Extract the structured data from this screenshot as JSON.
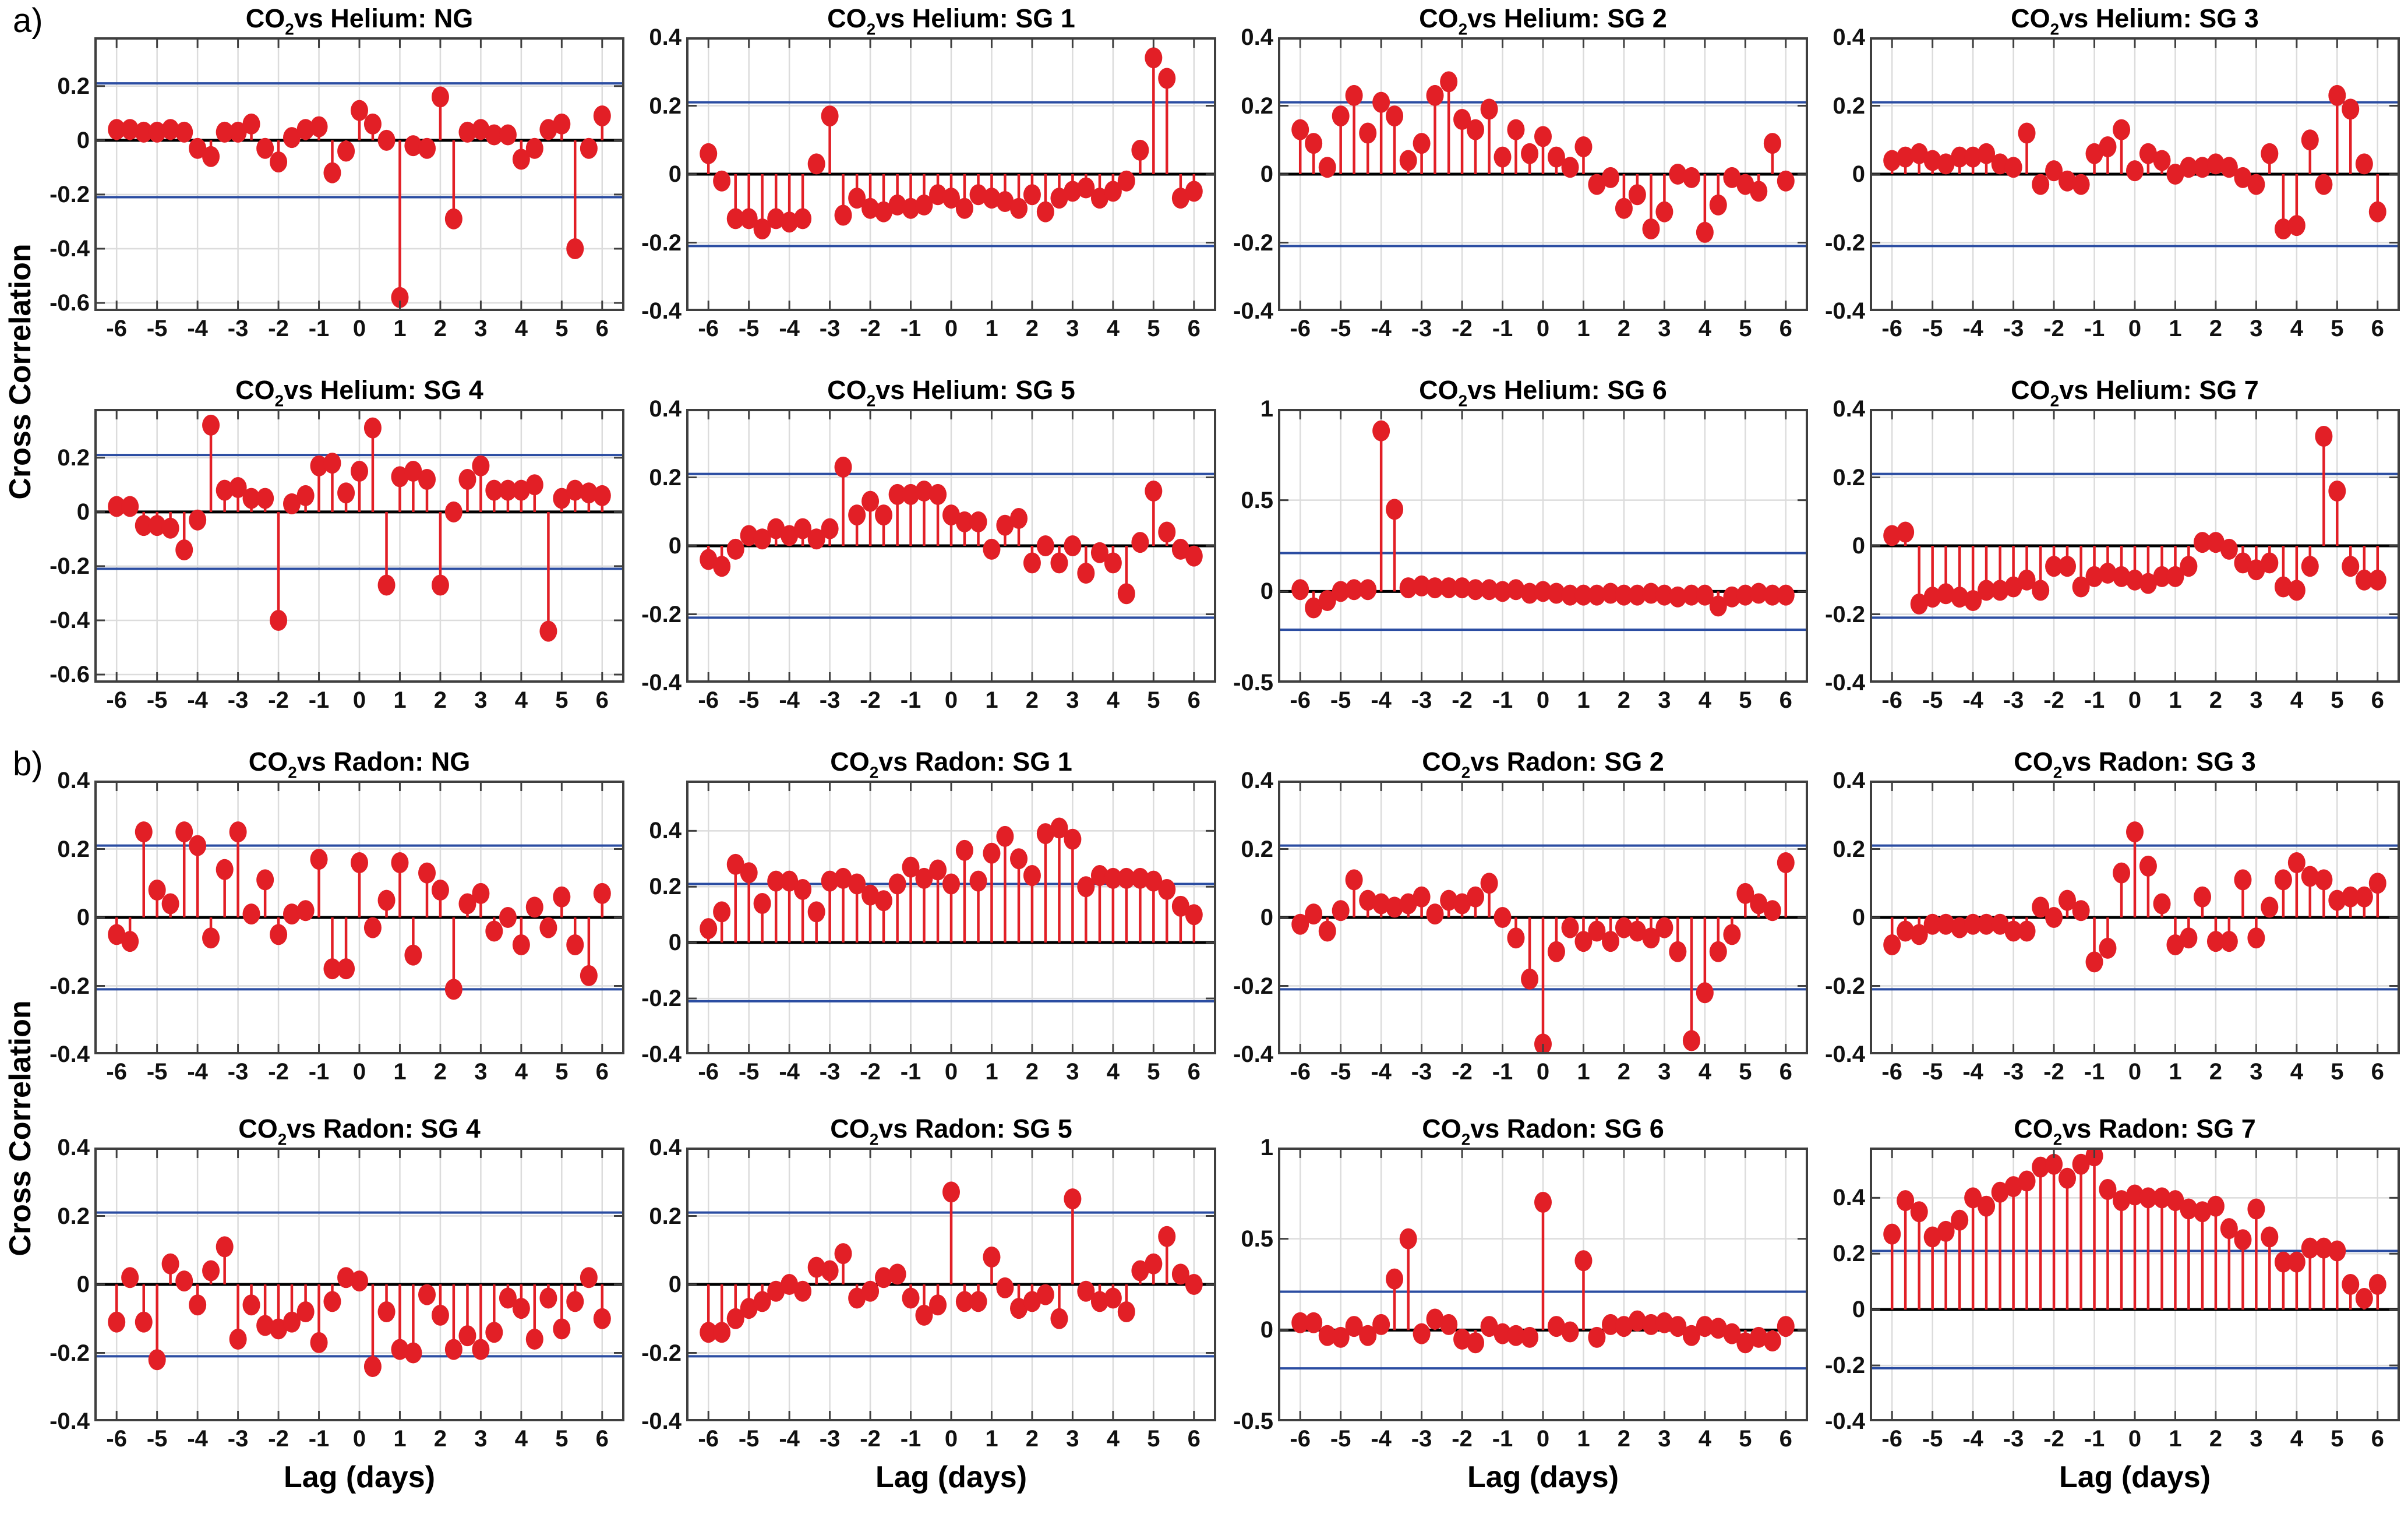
{
  "figure": {
    "panel_a_label": "a)",
    "panel_b_label": "b)",
    "ylabel": "Cross Correlation",
    "xlabel": "Lag (days)"
  },
  "colors": {
    "stem": "#e21f26",
    "marker": "#e21f26",
    "confidence_line": "#2b4da2",
    "zero_line": "#000000",
    "grid_line": "#dcdcdc",
    "axis_box": "#3f3f3f",
    "tick_label": "#111111",
    "background": "#ffffff"
  },
  "chart_data": {
    "type": "stem",
    "grid": true,
    "xlabel": "Lag (days)",
    "ylabel": "Cross Correlation",
    "shared": {
      "xlim": [
        -6.55,
        6.55
      ],
      "xticks": [
        -6,
        -5,
        -4,
        -3,
        -2,
        -1,
        0,
        1,
        2,
        3,
        4,
        5,
        6
      ],
      "confidence_bounds": [
        -0.21,
        0.21
      ],
      "lags": [
        -6,
        -5.67,
        -5.33,
        -5,
        -4.67,
        -4.33,
        -4,
        -3.67,
        -3.33,
        -3,
        -2.67,
        -2.33,
        -2,
        -1.67,
        -1.33,
        -1,
        -0.67,
        -0.33,
        0,
        0.33,
        0.67,
        1,
        1.33,
        1.67,
        2,
        2.33,
        2.67,
        3,
        3.33,
        3.67,
        4,
        4.33,
        4.67,
        5,
        5.33,
        5.67,
        6
      ]
    },
    "charts": [
      {
        "id": "co2-vs-helium-ng",
        "panel": "a",
        "show_xlabel": false,
        "title_parts": {
          "prefix": "CO",
          "sub": "2",
          "suffix": "vs Helium: NG"
        },
        "ylim": [
          -0.63,
          0.38
        ],
        "yticks": [
          0.2,
          0,
          -0.2,
          -0.4,
          -0.6
        ],
        "values": [
          0.04,
          0.04,
          0.03,
          0.03,
          0.04,
          0.03,
          -0.03,
          -0.06,
          0.03,
          0.03,
          0.06,
          -0.03,
          -0.08,
          0.01,
          0.04,
          0.05,
          -0.12,
          -0.04,
          0.11,
          0.06,
          0.0,
          -0.58,
          -0.02,
          -0.03,
          0.16,
          -0.29,
          0.03,
          0.04,
          0.02,
          0.02,
          -0.07,
          -0.03,
          0.04,
          0.06,
          -0.4,
          -0.03,
          0.09
        ]
      },
      {
        "id": "co2-vs-helium-sg1",
        "panel": "a",
        "show_xlabel": false,
        "title_parts": {
          "prefix": "CO",
          "sub": "2",
          "suffix": "vs Helium: SG 1"
        },
        "ylim": [
          -0.4,
          0.4
        ],
        "yticks": [
          0.4,
          0.2,
          0,
          -0.2,
          -0.4
        ],
        "values": [
          0.06,
          -0.02,
          -0.13,
          -0.13,
          -0.16,
          -0.13,
          -0.14,
          -0.13,
          0.03,
          0.17,
          -0.12,
          -0.07,
          -0.1,
          -0.11,
          -0.09,
          -0.1,
          -0.09,
          -0.06,
          -0.07,
          -0.1,
          -0.06,
          -0.07,
          -0.08,
          -0.1,
          -0.06,
          -0.11,
          -0.07,
          -0.05,
          -0.04,
          -0.07,
          -0.05,
          -0.02,
          0.07,
          0.34,
          0.28,
          -0.07,
          -0.05
        ]
      },
      {
        "id": "co2-vs-helium-sg2",
        "panel": "a",
        "show_xlabel": false,
        "title_parts": {
          "prefix": "CO",
          "sub": "2",
          "suffix": "vs Helium: SG 2"
        },
        "ylim": [
          -0.4,
          0.4
        ],
        "yticks": [
          0.4,
          0.2,
          0,
          -0.2,
          -0.4
        ],
        "values": [
          0.13,
          0.09,
          0.02,
          0.17,
          0.23,
          0.12,
          0.21,
          0.17,
          0.04,
          0.09,
          0.23,
          0.27,
          0.16,
          0.13,
          0.19,
          0.05,
          0.13,
          0.06,
          0.11,
          0.05,
          0.02,
          0.08,
          -0.03,
          -0.01,
          -0.1,
          -0.06,
          -0.16,
          -0.11,
          0.0,
          -0.01,
          -0.17,
          -0.09,
          -0.01,
          -0.03,
          -0.05,
          0.09,
          -0.02
        ]
      },
      {
        "id": "co2-vs-helium-sg3",
        "panel": "a",
        "show_xlabel": false,
        "title_parts": {
          "prefix": "CO",
          "sub": "2",
          "suffix": "vs Helium: SG 3"
        },
        "ylim": [
          -0.4,
          0.4
        ],
        "yticks": [
          0.4,
          0.2,
          0,
          -0.2,
          -0.4
        ],
        "values": [
          0.04,
          0.05,
          0.06,
          0.04,
          0.03,
          0.05,
          0.05,
          0.06,
          0.03,
          0.02,
          0.12,
          -0.03,
          0.01,
          -0.02,
          -0.03,
          0.06,
          0.08,
          0.13,
          0.01,
          0.06,
          0.04,
          0.0,
          0.02,
          0.02,
          0.03,
          0.02,
          -0.01,
          -0.03,
          0.06,
          -0.16,
          -0.15,
          0.1,
          -0.03,
          0.23,
          0.19,
          0.03,
          -0.11
        ]
      },
      {
        "id": "co2-vs-helium-sg4",
        "panel": "a",
        "show_xlabel": false,
        "title_parts": {
          "prefix": "CO",
          "sub": "2",
          "suffix": "vs Helium: SG 4"
        },
        "ylim": [
          -0.63,
          0.38
        ],
        "yticks": [
          0.2,
          0,
          -0.2,
          -0.4,
          -0.6
        ],
        "values": [
          0.02,
          0.02,
          -0.05,
          -0.05,
          -0.06,
          -0.14,
          -0.03,
          0.32,
          0.08,
          0.09,
          0.05,
          0.05,
          -0.4,
          0.03,
          0.06,
          0.17,
          0.18,
          0.07,
          0.15,
          0.31,
          -0.27,
          0.13,
          0.15,
          0.12,
          -0.27,
          0.0,
          0.12,
          0.17,
          0.08,
          0.08,
          0.08,
          0.1,
          -0.44,
          0.05,
          0.08,
          0.07,
          0.06
        ]
      },
      {
        "id": "co2-vs-helium-sg5",
        "panel": "a",
        "show_xlabel": false,
        "title_parts": {
          "prefix": "CO",
          "sub": "2",
          "suffix": "vs Helium: SG 5"
        },
        "ylim": [
          -0.4,
          0.4
        ],
        "yticks": [
          0.4,
          0.2,
          0,
          -0.2,
          -0.4
        ],
        "values": [
          -0.04,
          -0.06,
          -0.01,
          0.03,
          0.02,
          0.05,
          0.03,
          0.05,
          0.02,
          0.05,
          0.23,
          0.09,
          0.13,
          0.09,
          0.15,
          0.15,
          0.16,
          0.15,
          0.09,
          0.07,
          0.07,
          -0.01,
          0.06,
          0.08,
          -0.05,
          0.0,
          -0.05,
          0.0,
          -0.08,
          -0.02,
          -0.05,
          -0.14,
          0.01,
          0.16,
          0.04,
          -0.01,
          -0.03
        ]
      },
      {
        "id": "co2-vs-helium-sg6",
        "panel": "a",
        "show_xlabel": false,
        "title_parts": {
          "prefix": "CO",
          "sub": "2",
          "suffix": "vs Helium: SG 6"
        },
        "ylim": [
          -0.5,
          1.0
        ],
        "yticks": [
          1,
          0.5,
          0,
          -0.5
        ],
        "values": [
          0.01,
          -0.09,
          -0.05,
          0.0,
          0.01,
          0.01,
          0.88,
          0.45,
          0.02,
          0.03,
          0.02,
          0.02,
          0.02,
          0.01,
          0.01,
          0.0,
          0.01,
          -0.01,
          0.0,
          -0.01,
          -0.02,
          -0.02,
          -0.02,
          -0.01,
          -0.02,
          -0.02,
          -0.01,
          -0.02,
          -0.03,
          -0.02,
          -0.02,
          -0.08,
          -0.03,
          -0.02,
          -0.01,
          -0.02,
          -0.02
        ]
      },
      {
        "id": "co2-vs-helium-sg7",
        "panel": "a",
        "show_xlabel": false,
        "title_parts": {
          "prefix": "CO",
          "sub": "2",
          "suffix": "vs Helium: SG 7"
        },
        "ylim": [
          -0.4,
          0.4
        ],
        "yticks": [
          0.4,
          0.2,
          0,
          -0.2,
          -0.4
        ],
        "values": [
          0.03,
          0.04,
          -0.17,
          -0.15,
          -0.14,
          -0.15,
          -0.16,
          -0.13,
          -0.13,
          -0.12,
          -0.1,
          -0.13,
          -0.06,
          -0.06,
          -0.12,
          -0.09,
          -0.08,
          -0.09,
          -0.1,
          -0.11,
          -0.09,
          -0.09,
          -0.06,
          0.01,
          0.01,
          -0.01,
          -0.05,
          -0.07,
          -0.05,
          -0.12,
          -0.13,
          -0.06,
          0.32,
          0.16,
          -0.06,
          -0.1,
          -0.1
        ]
      },
      {
        "id": "co2-vs-radon-ng",
        "panel": "b",
        "show_xlabel": false,
        "title_parts": {
          "prefix": "CO",
          "sub": "2",
          "suffix": "vs Radon: NG"
        },
        "ylim": [
          -0.4,
          0.4
        ],
        "yticks": [
          0.4,
          0.2,
          0,
          -0.2,
          -0.4
        ],
        "values": [
          -0.05,
          -0.07,
          0.25,
          0.08,
          0.04,
          0.25,
          0.21,
          -0.06,
          0.14,
          0.25,
          0.01,
          0.11,
          -0.05,
          0.01,
          0.02,
          0.17,
          -0.15,
          -0.15,
          0.16,
          -0.03,
          0.05,
          0.16,
          -0.11,
          0.13,
          0.08,
          -0.21,
          0.04,
          0.07,
          -0.04,
          0.0,
          -0.08,
          0.03,
          -0.03,
          0.06,
          -0.08,
          -0.17,
          0.07
        ]
      },
      {
        "id": "co2-vs-radon-sg1",
        "panel": "b",
        "show_xlabel": false,
        "title_parts": {
          "prefix": "CO",
          "sub": "2",
          "suffix": "vs Radon: SG 1"
        },
        "ylim": [
          -0.4,
          0.58
        ],
        "yticks": [
          0.4,
          0.2,
          0,
          -0.2,
          -0.4
        ],
        "values": [
          0.05,
          0.11,
          0.28,
          0.25,
          0.14,
          0.22,
          0.22,
          0.19,
          0.11,
          0.22,
          0.23,
          0.21,
          0.17,
          0.15,
          0.21,
          0.27,
          0.23,
          0.26,
          0.21,
          0.33,
          0.22,
          0.32,
          0.38,
          0.3,
          0.24,
          0.39,
          0.41,
          0.37,
          0.2,
          0.24,
          0.23,
          0.23,
          0.23,
          0.22,
          0.19,
          0.13,
          0.1
        ]
      },
      {
        "id": "co2-vs-radon-sg2",
        "panel": "b",
        "show_xlabel": false,
        "title_parts": {
          "prefix": "CO",
          "sub": "2",
          "suffix": "vs Radon: SG 2"
        },
        "ylim": [
          -0.4,
          0.4
        ],
        "yticks": [
          0.4,
          0.2,
          0,
          -0.2,
          -0.4
        ],
        "values": [
          -0.02,
          0.01,
          -0.04,
          0.02,
          0.11,
          0.05,
          0.04,
          0.03,
          0.04,
          0.06,
          0.01,
          0.05,
          0.04,
          0.06,
          0.1,
          0.0,
          -0.06,
          -0.18,
          -0.37,
          -0.1,
          -0.03,
          -0.07,
          -0.04,
          -0.07,
          -0.03,
          -0.04,
          -0.06,
          -0.03,
          -0.1,
          -0.36,
          -0.22,
          -0.1,
          -0.05,
          0.07,
          0.04,
          0.02,
          0.16
        ]
      },
      {
        "id": "co2-vs-radon-sg3",
        "panel": "b",
        "show_xlabel": false,
        "title_parts": {
          "prefix": "CO",
          "sub": "2",
          "suffix": "vs Radon: SG 3"
        },
        "ylim": [
          -0.4,
          0.4
        ],
        "yticks": [
          0.4,
          0.2,
          0,
          -0.2,
          -0.4
        ],
        "values": [
          -0.08,
          -0.04,
          -0.05,
          -0.02,
          -0.02,
          -0.03,
          -0.02,
          -0.02,
          -0.02,
          -0.04,
          -0.04,
          0.03,
          0.0,
          0.05,
          0.02,
          -0.13,
          -0.09,
          0.13,
          0.25,
          0.15,
          0.04,
          -0.08,
          -0.06,
          0.06,
          -0.07,
          -0.07,
          0.11,
          -0.06,
          0.03,
          0.11,
          0.16,
          0.12,
          0.11,
          0.05,
          0.06,
          0.06,
          0.1
        ]
      },
      {
        "id": "co2-vs-radon-sg4",
        "panel": "b",
        "show_xlabel": true,
        "title_parts": {
          "prefix": "CO",
          "sub": "2",
          "suffix": "vs Radon: SG 4"
        },
        "ylim": [
          -0.4,
          0.4
        ],
        "yticks": [
          0.4,
          0.2,
          0,
          -0.2,
          -0.4
        ],
        "values": [
          -0.11,
          0.02,
          -0.11,
          -0.22,
          0.06,
          0.01,
          -0.06,
          0.04,
          0.11,
          -0.16,
          -0.06,
          -0.12,
          -0.13,
          -0.11,
          -0.08,
          -0.17,
          -0.05,
          0.02,
          0.01,
          -0.24,
          -0.08,
          -0.19,
          -0.2,
          -0.03,
          -0.09,
          -0.19,
          -0.15,
          -0.19,
          -0.14,
          -0.04,
          -0.07,
          -0.16,
          -0.04,
          -0.13,
          -0.05,
          0.02,
          -0.1
        ]
      },
      {
        "id": "co2-vs-radon-sg5",
        "panel": "b",
        "show_xlabel": true,
        "title_parts": {
          "prefix": "CO",
          "sub": "2",
          "suffix": "vs Radon: SG 5"
        },
        "ylim": [
          -0.4,
          0.4
        ],
        "yticks": [
          0.4,
          0.2,
          0,
          -0.2,
          -0.4
        ],
        "values": [
          -0.14,
          -0.14,
          -0.1,
          -0.07,
          -0.05,
          -0.02,
          0.0,
          -0.02,
          0.05,
          0.04,
          0.09,
          -0.04,
          -0.02,
          0.02,
          0.03,
          -0.04,
          -0.09,
          -0.06,
          0.27,
          -0.05,
          -0.05,
          0.08,
          -0.01,
          -0.07,
          -0.05,
          -0.03,
          -0.1,
          0.25,
          -0.02,
          -0.05,
          -0.04,
          -0.08,
          0.04,
          0.06,
          0.14,
          0.03,
          0.0
        ]
      },
      {
        "id": "co2-vs-radon-sg6",
        "panel": "b",
        "show_xlabel": true,
        "title_parts": {
          "prefix": "CO",
          "sub": "2",
          "suffix": "vs Radon: SG 6"
        },
        "ylim": [
          -0.5,
          1.0
        ],
        "yticks": [
          1,
          0.5,
          0,
          -0.5
        ],
        "values": [
          0.04,
          0.04,
          -0.03,
          -0.04,
          0.02,
          -0.03,
          0.03,
          0.28,
          0.5,
          -0.02,
          0.06,
          0.03,
          -0.05,
          -0.07,
          0.02,
          -0.02,
          -0.03,
          -0.04,
          0.7,
          0.02,
          -0.01,
          0.38,
          -0.04,
          0.03,
          0.02,
          0.05,
          0.03,
          0.04,
          0.02,
          -0.03,
          0.02,
          0.01,
          -0.02,
          -0.07,
          -0.04,
          -0.06,
          0.02
        ]
      },
      {
        "id": "co2-vs-radon-sg7",
        "panel": "b",
        "show_xlabel": true,
        "title_parts": {
          "prefix": "CO",
          "sub": "2",
          "suffix": "vs Radon: SG 7"
        },
        "ylim": [
          -0.4,
          0.58
        ],
        "yticks": [
          0.4,
          0.2,
          0,
          -0.2,
          -0.4
        ],
        "values": [
          0.27,
          0.39,
          0.35,
          0.26,
          0.28,
          0.32,
          0.4,
          0.37,
          0.42,
          0.44,
          0.46,
          0.51,
          0.52,
          0.47,
          0.52,
          0.55,
          0.43,
          0.39,
          0.41,
          0.4,
          0.4,
          0.39,
          0.36,
          0.35,
          0.37,
          0.29,
          0.25,
          0.36,
          0.26,
          0.17,
          0.17,
          0.22,
          0.22,
          0.21,
          0.09,
          0.04,
          0.09
        ]
      }
    ]
  }
}
